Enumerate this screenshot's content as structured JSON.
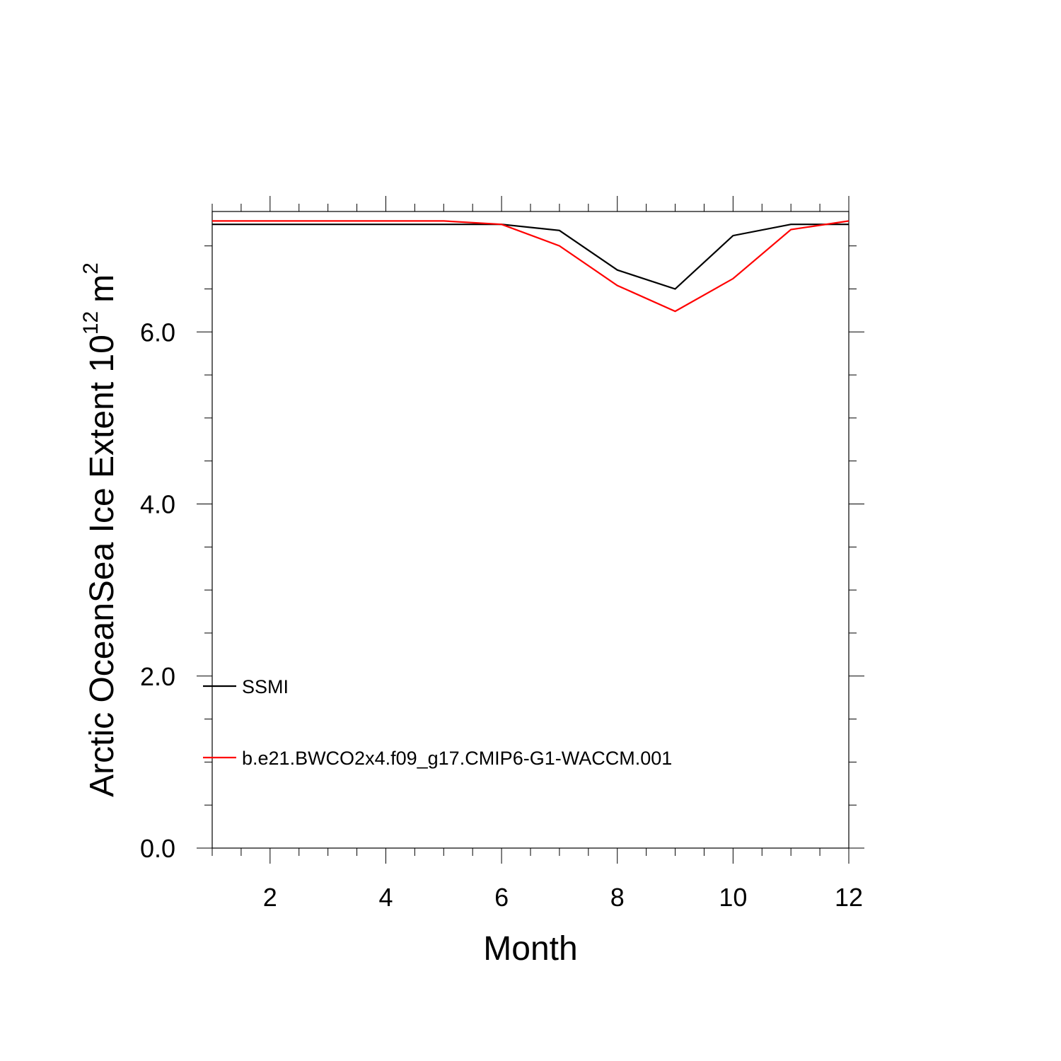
{
  "chart_data": {
    "type": "line",
    "xlabel": "Month",
    "ylabel": {
      "text": "Arctic OceanSea Ice Extent 10",
      "exponent": "12",
      "unit": "m",
      "unit_exponent": "2"
    },
    "xlim": [
      1,
      12
    ],
    "ylim": [
      0,
      7.4
    ],
    "x_ticks": [
      2,
      4,
      6,
      8,
      10,
      12
    ],
    "x_tick_labels": [
      "2",
      "4",
      "6",
      "8",
      "10",
      "12"
    ],
    "y_ticks": [
      0,
      2,
      4,
      6
    ],
    "y_tick_labels": [
      "0.0",
      "2.0",
      "4.0",
      "6.0"
    ],
    "x": [
      1,
      2,
      3,
      4,
      5,
      6,
      7,
      8,
      9,
      10,
      11,
      12
    ],
    "series": [
      {
        "name": "SSMI",
        "color": "#000000",
        "values": [
          7.25,
          7.25,
          7.25,
          7.25,
          7.25,
          7.25,
          7.18,
          6.72,
          6.5,
          7.12,
          7.25,
          7.25
        ]
      },
      {
        "name": "b.e21.BWCO2x4.f09_g17.CMIP6-G1-WACCM.001",
        "color": "#ff0000",
        "values": [
          7.29,
          7.29,
          7.29,
          7.29,
          7.29,
          7.25,
          7.0,
          6.54,
          6.24,
          6.62,
          7.19,
          7.29
        ]
      }
    ],
    "grid": false,
    "legend": "bottom-left, inside plot"
  }
}
